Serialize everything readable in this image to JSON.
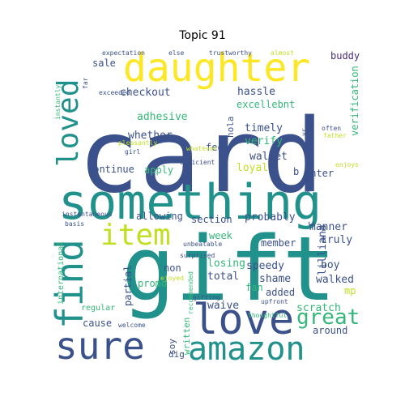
{
  "title": "Topic 91",
  "words": [
    "card",
    "gift",
    "something",
    "daughter",
    "love",
    "amazon",
    "sure",
    "item",
    "find",
    "loved",
    "great",
    "checkout",
    "excellebnt",
    "hassle",
    "verification",
    "timely",
    "verify",
    "adhesive",
    "whether",
    "hola",
    "fee",
    "wallet",
    "continue",
    "apply",
    "loyal",
    "enter",
    "b",
    "allowing",
    "section",
    "probably",
    "manner",
    "week",
    "truly",
    "member",
    "boy",
    "losing",
    "speedy",
    "non",
    "lilliana",
    "partial",
    "promo",
    "total",
    "shame",
    "walked",
    "fan",
    "added",
    "mp",
    "waive",
    "scratch",
    "cause",
    "soy",
    "written",
    "around",
    "international",
    "regular",
    "c",
    "dig",
    "sale",
    "buddy",
    "expectation",
    "else",
    "trustworthy",
    "almost",
    "far",
    "exceeded",
    "instantly",
    "girl",
    "yr",
    "whatever",
    "pleasantly",
    "efficient",
    "surprised",
    "asked",
    "hs",
    "often",
    "father",
    "enjoys",
    "instantaneous",
    "basis",
    "unbeatable",
    "ejoyed",
    "gifting",
    "upfront",
    "thoughtful",
    "recommended",
    "welcome"
  ],
  "colors": {
    "navy": "#3b518b",
    "teal": "#21918c",
    "green": "#35b779",
    "lime": "#c2df23",
    "yellow": "#fde725",
    "purple": "#472d7b",
    "grey": "#6a6a8a"
  }
}
